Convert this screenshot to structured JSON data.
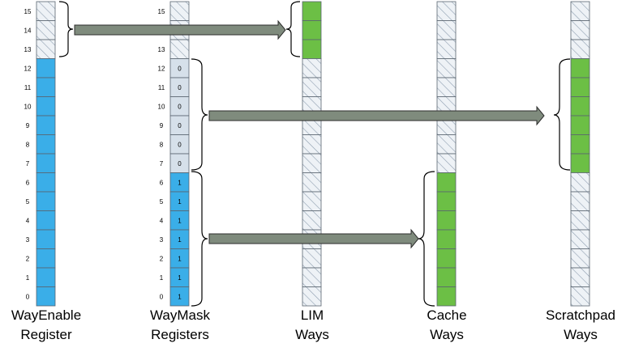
{
  "colors": {
    "blue": "#3aaee8",
    "green": "#6cbf45",
    "light": "#d6e0ea",
    "hatch_bg": "#eef2f6",
    "hatch_line": "#8f9fb0",
    "cell_border": "#5a6570",
    "arrow_fill": "#7f8b7d",
    "arrow_stroke": "#2d2d2d",
    "brace": "#000000"
  },
  "labels": {
    "wayenable": [
      "WayEnable",
      "Register"
    ],
    "waymask": [
      "WayMask",
      "Registers"
    ],
    "lim": [
      "LIM",
      "Ways"
    ],
    "cache": [
      "Cache",
      "Ways"
    ],
    "scratchpad": [
      "Scratchpad",
      "Ways"
    ]
  },
  "row_numbers": [
    "15",
    "14",
    "13",
    "12",
    "11",
    "10",
    "9",
    "8",
    "7",
    "6",
    "5",
    "4",
    "3",
    "2",
    "1",
    "0"
  ],
  "columns": {
    "wayenable": {
      "cells": [
        "hatch",
        "hatch",
        "hatch",
        "blue",
        "blue",
        "blue",
        "blue",
        "blue",
        "blue",
        "blue",
        "blue",
        "blue",
        "blue",
        "blue",
        "blue",
        "blue"
      ]
    },
    "waymask": {
      "cells": [
        "hatch",
        "hatch",
        "hatch",
        "light",
        "light",
        "light",
        "light",
        "light",
        "light",
        "blue",
        "blue",
        "blue",
        "blue",
        "blue",
        "blue",
        "blue"
      ],
      "values": [
        "",
        "",
        "",
        "0",
        "0",
        "0",
        "0",
        "0",
        "0",
        "1",
        "1",
        "1",
        "1",
        "1",
        "1",
        "1"
      ]
    },
    "lim": {
      "cells": [
        "green",
        "green",
        "green",
        "hatch",
        "hatch",
        "hatch",
        "hatch",
        "hatch",
        "hatch",
        "hatch",
        "hatch",
        "hatch",
        "hatch",
        "hatch",
        "hatch",
        "hatch"
      ]
    },
    "cache": {
      "cells": [
        "hatch",
        "hatch",
        "hatch",
        "hatch",
        "hatch",
        "hatch",
        "hatch",
        "hatch",
        "hatch",
        "green",
        "green",
        "green",
        "green",
        "green",
        "green",
        "green"
      ]
    },
    "scratchpad": {
      "cells": [
        "hatch",
        "hatch",
        "hatch",
        "green",
        "green",
        "green",
        "green",
        "green",
        "green",
        "hatch",
        "hatch",
        "hatch",
        "hatch",
        "hatch",
        "hatch",
        "hatch"
      ]
    }
  }
}
